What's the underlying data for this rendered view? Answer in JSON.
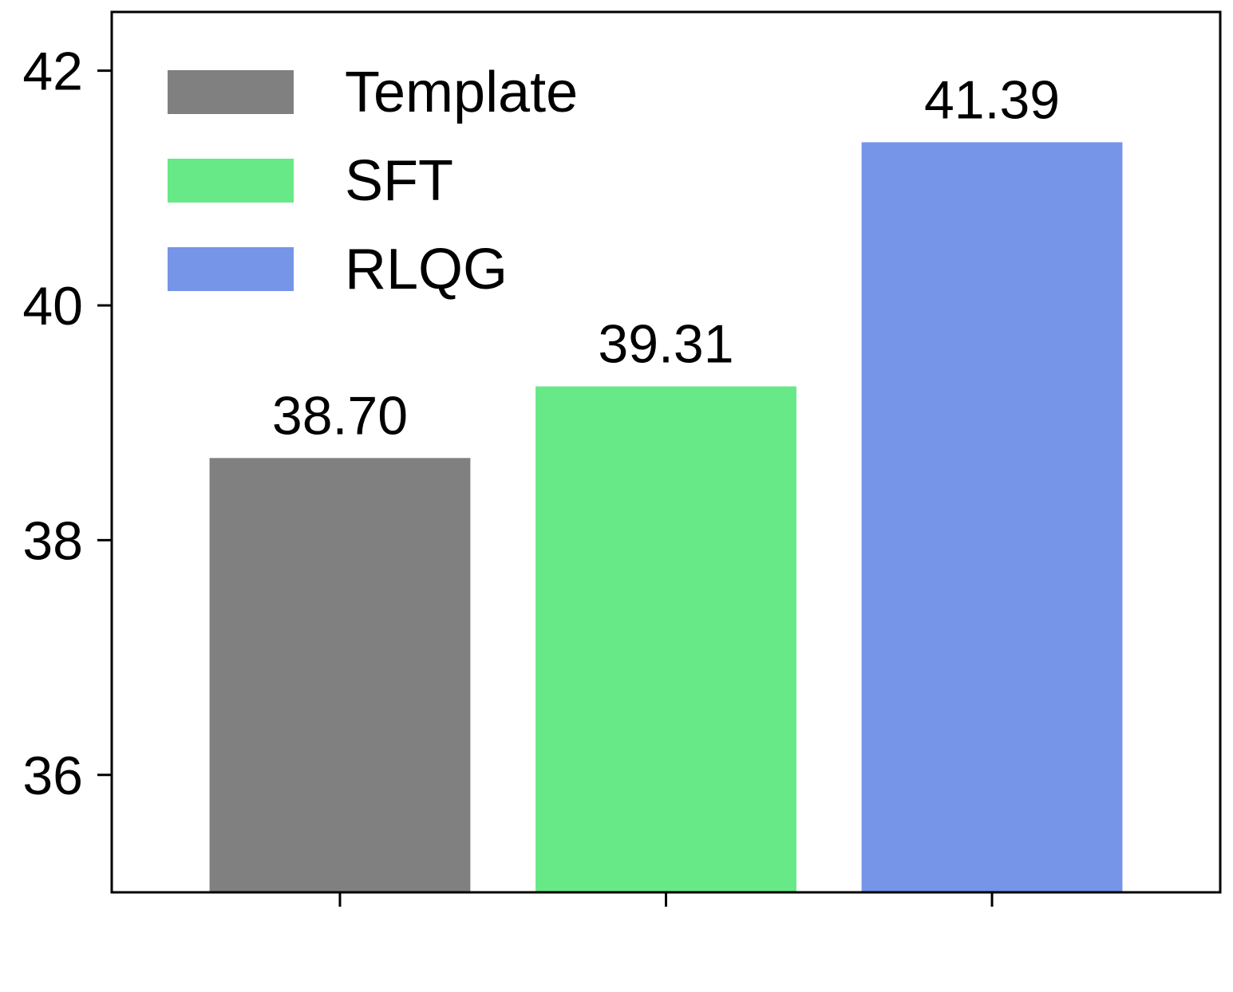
{
  "chart_data": {
    "type": "bar",
    "title": "",
    "xlabel": "",
    "ylabel": "",
    "ylim": [
      35.0,
      42.5
    ],
    "yticks": [
      36,
      38,
      40,
      42
    ],
    "grid": false,
    "legend_position": "top-left",
    "series": [
      {
        "name": "Template",
        "value": 38.7,
        "label": "38.70",
        "color": "#808080"
      },
      {
        "name": "SFT",
        "value": 39.31,
        "label": "39.31",
        "color": "#66E986"
      },
      {
        "name": "RLQG",
        "value": 41.39,
        "label": "41.39",
        "color": "#7694E8"
      }
    ]
  }
}
